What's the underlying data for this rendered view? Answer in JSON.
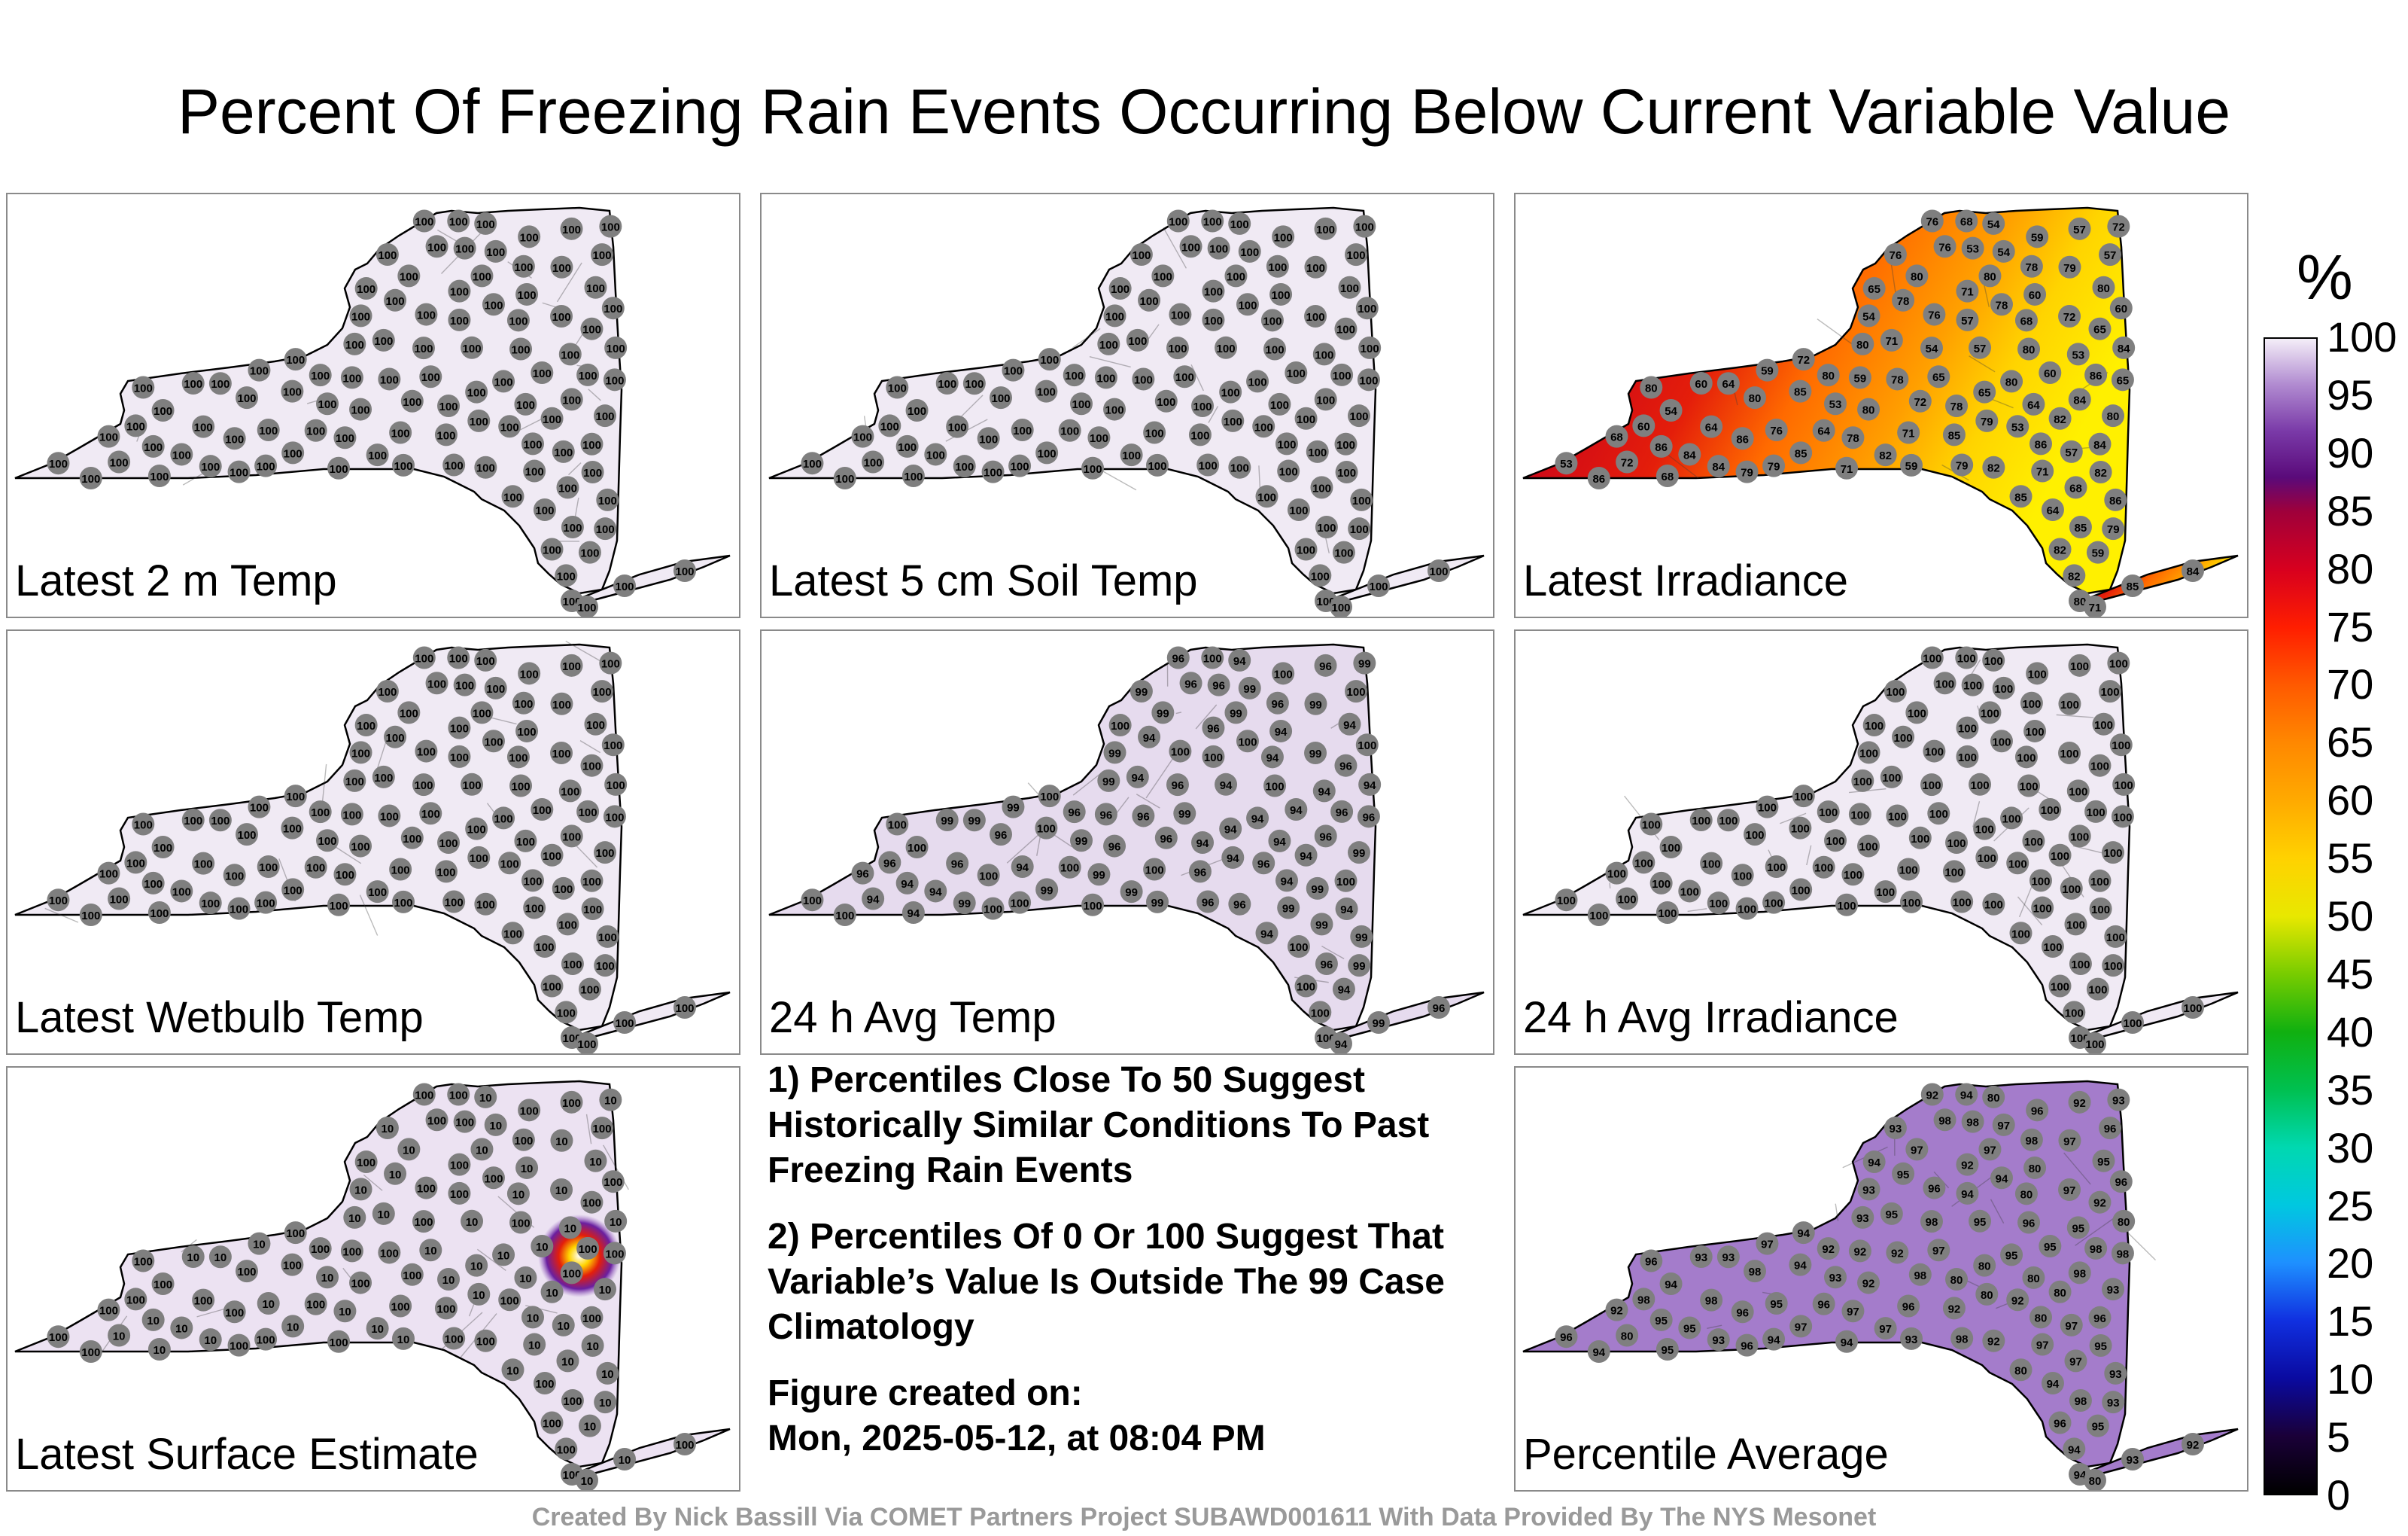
{
  "title": "Percent Of Freezing Rain Events Occurring Below Current Variable Value",
  "unit": "%",
  "colors": {
    "near_100": "#efe6f3",
    "high_90s": "#c2a3d6",
    "purple": "#9a6cc2",
    "red": "#c8001e",
    "orange": "#ff7a00",
    "yellow": "#ffe600",
    "station_marker": "#7f7f7f"
  },
  "panels": [
    {
      "label": "Latest 2 m Temp",
      "fill": "#f0eaf4",
      "station_values": [
        "100"
      ]
    },
    {
      "label": "Latest 5 cm Soil Temp",
      "fill": "#f0eaf4",
      "station_values": [
        "100"
      ]
    },
    {
      "label": "Latest Irradiance",
      "fill": "gradient-irradiance",
      "station_values": [
        "82",
        "79",
        "80",
        "78",
        "86",
        "80",
        "85",
        "84",
        "71",
        "72",
        "76",
        "68",
        "64",
        "59",
        "65",
        "60",
        "57",
        "54",
        "53"
      ]
    },
    {
      "label": "Latest Wetbulb Temp",
      "fill": "#f0eaf4",
      "station_values": [
        "100"
      ]
    },
    {
      "label": "24 h Avg Temp",
      "fill": "#e6dbee",
      "station_values": [
        "100",
        "99",
        "96",
        "94"
      ]
    },
    {
      "label": "24 h Avg Irradiance",
      "fill": "#f0eaf4",
      "station_values": [
        "100"
      ]
    },
    {
      "label": "Latest Surface Estimate",
      "fill": "#ece2f2",
      "station_values": [
        "100",
        "10"
      ]
    },
    {
      "label": "Percentile Average",
      "fill": "#a47ccb",
      "station_values": [
        "96",
        "97",
        "98",
        "95",
        "94",
        "93",
        "92",
        "80"
      ]
    }
  ],
  "notes": [
    "1) Percentiles Close To 50 Suggest Historically Similar Conditions To Past Freezing Rain Events",
    "2) Percentiles Of 0 Or 100 Suggest That Variable’s Value Is Outside The 99 Case Climatology"
  ],
  "created_label": "Figure created on:",
  "created_value": "Mon, 2025-05-12, at 08:04 PM",
  "footer": "Created By Nick Bassill Via COMET Partners Project SUBAWD001611 With Data Provided By The NYS Mesonet",
  "colorbar": {
    "min": 0,
    "max": 100,
    "tick_labels": [
      "0",
      "5",
      "10",
      "15",
      "20",
      "25",
      "30",
      "35",
      "40",
      "45",
      "50",
      "55",
      "60",
      "65",
      "70",
      "75",
      "80",
      "85",
      "90",
      "95",
      "100"
    ]
  }
}
